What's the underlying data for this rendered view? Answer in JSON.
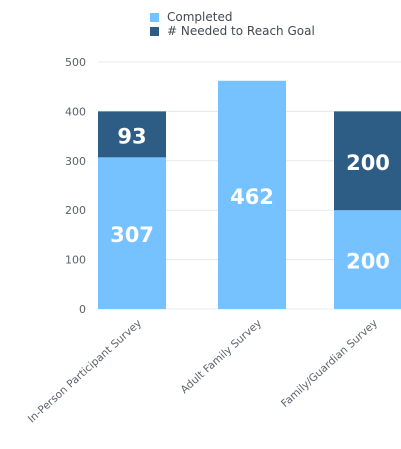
{
  "colors": {
    "completed": "#76c1ff",
    "needed": "#2d5d84",
    "grid": "#e5e8ec",
    "axis_text": "#5b636b",
    "label_text": "#ffffff"
  },
  "chart_data": {
    "type": "bar",
    "stacked": true,
    "categories": [
      "In-Person Participant Survey",
      "Adult Family Survey",
      "Family/Guardian Survey"
    ],
    "series": [
      {
        "name": "Completed",
        "values": [
          307,
          462,
          200
        ],
        "color": "#76c1ff"
      },
      {
        "name": "# Needed to Reach Goal",
        "values": [
          93,
          0,
          200
        ],
        "color": "#2d5d84"
      }
    ],
    "data_labels": [
      [
        "307",
        "462",
        "200"
      ],
      [
        "93",
        "",
        "200"
      ]
    ],
    "y_ticks": [
      "0",
      "100",
      "200",
      "300",
      "400",
      "500"
    ],
    "ylim": [
      0,
      500
    ],
    "grid": true,
    "legend_position": "top-right"
  }
}
